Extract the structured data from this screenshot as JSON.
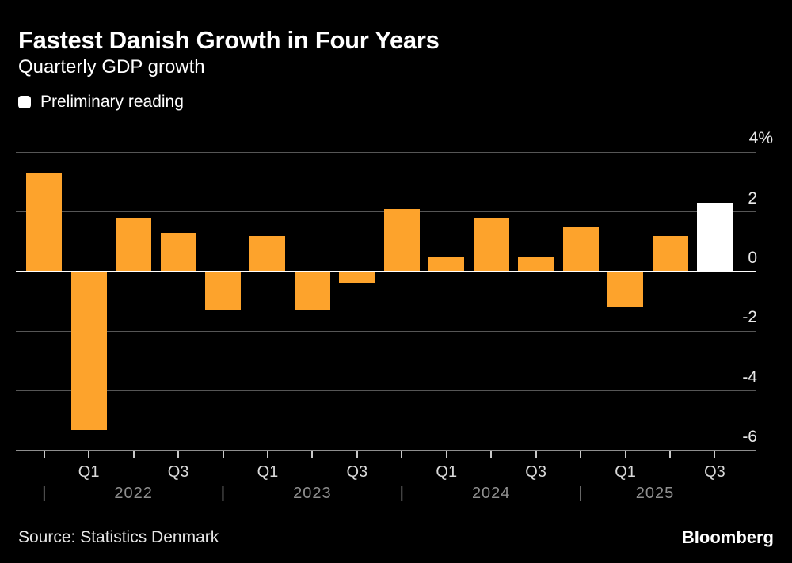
{
  "header": {
    "title": "Fastest Danish Growth in Four Years",
    "subtitle": "Quarterly GDP growth"
  },
  "legend": {
    "label": "Preliminary reading",
    "swatch_color": "#ffffff"
  },
  "footer": {
    "source": "Source: Statistics Denmark",
    "brand": "Bloomberg"
  },
  "colors": {
    "background": "#000000",
    "bar": "#fda32c",
    "preliminary_bar": "#ffffff",
    "gridline": "#565656",
    "zero_line": "#ffffff",
    "baseline": "#8e8e8e",
    "quarter_label": "#d9d9d9",
    "year_label": "#8f8f8f",
    "y_axis_label": "#e8e8e8"
  },
  "chart_data": {
    "type": "bar",
    "title": "Fastest Danish Growth in Four Years",
    "subtitle": "Quarterly GDP growth",
    "unit": "% quarter-on-quarter",
    "grid": "horizontal",
    "legend_position": "top-left",
    "legend": [
      {
        "label": "Preliminary reading",
        "color": "#ffffff"
      }
    ],
    "ylim": [
      -6,
      4
    ],
    "y_ticks": [
      {
        "value": 4,
        "label": "4%"
      },
      {
        "value": 2,
        "label": "2"
      },
      {
        "value": 0,
        "label": "0"
      },
      {
        "value": -2,
        "label": "-2"
      },
      {
        "value": -4,
        "label": "-4"
      },
      {
        "value": -6,
        "label": "-6"
      }
    ],
    "years": [
      "2022",
      "2023",
      "2024",
      "2025"
    ],
    "points": [
      {
        "quarter": "Q4 2021",
        "tick_label": "",
        "value": 3.3,
        "preliminary": false
      },
      {
        "quarter": "Q1 2022",
        "tick_label": "Q1",
        "value": -5.3,
        "preliminary": false
      },
      {
        "quarter": "Q2 2022",
        "tick_label": "",
        "value": 1.8,
        "preliminary": false
      },
      {
        "quarter": "Q3 2022",
        "tick_label": "Q3",
        "value": 1.3,
        "preliminary": false
      },
      {
        "quarter": "Q4 2022",
        "tick_label": "",
        "value": -1.3,
        "preliminary": false
      },
      {
        "quarter": "Q1 2023",
        "tick_label": "Q1",
        "value": 1.2,
        "preliminary": false
      },
      {
        "quarter": "Q2 2023",
        "tick_label": "",
        "value": -1.3,
        "preliminary": false
      },
      {
        "quarter": "Q3 2023",
        "tick_label": "Q3",
        "value": -0.4,
        "preliminary": false
      },
      {
        "quarter": "Q4 2023",
        "tick_label": "",
        "value": 2.1,
        "preliminary": false
      },
      {
        "quarter": "Q1 2024",
        "tick_label": "Q1",
        "value": 0.5,
        "preliminary": false
      },
      {
        "quarter": "Q2 2024",
        "tick_label": "",
        "value": 1.8,
        "preliminary": false
      },
      {
        "quarter": "Q3 2024",
        "tick_label": "Q3",
        "value": 0.5,
        "preliminary": false
      },
      {
        "quarter": "Q4 2024",
        "tick_label": "",
        "value": 1.5,
        "preliminary": false
      },
      {
        "quarter": "Q1 2025",
        "tick_label": "Q1",
        "value": -1.2,
        "preliminary": false
      },
      {
        "quarter": "Q2 2025",
        "tick_label": "",
        "value": 1.2,
        "preliminary": false
      },
      {
        "quarter": "Q3 2025",
        "tick_label": "Q3",
        "value": 2.3,
        "preliminary": true
      }
    ]
  }
}
